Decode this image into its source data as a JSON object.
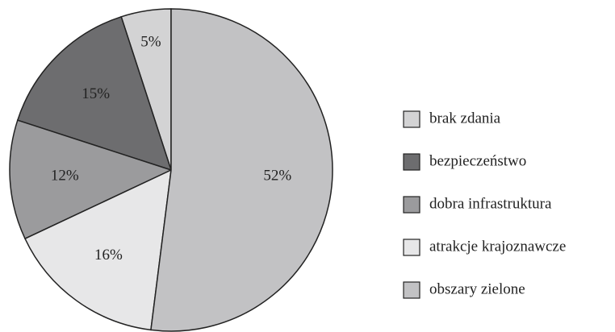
{
  "chart_data": {
    "type": "pie",
    "categories": [
      "brak zdania",
      "bezpieczeństwo",
      "dobra infrastruktura",
      "atrakcje krajoznawcze",
      "obszary zielone"
    ],
    "values": [
      5,
      15,
      12,
      16,
      52
    ],
    "value_labels": [
      "5%",
      "15%",
      "12%",
      "16%",
      "52%"
    ],
    "colors": [
      "#d3d3d4",
      "#6d6d6f",
      "#9b9b9d",
      "#e7e7e8",
      "#c2c2c4"
    ],
    "legend": "right"
  }
}
